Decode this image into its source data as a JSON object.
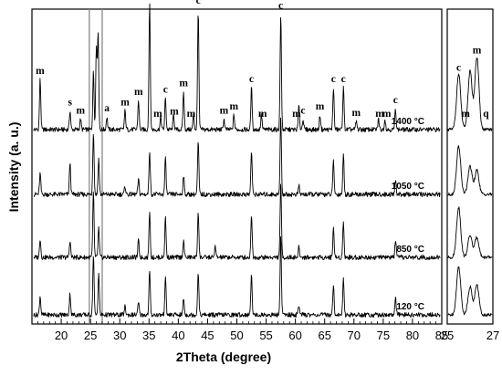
{
  "chart_data": {
    "type": "line",
    "xlabel": "2Theta (degree)",
    "ylabel": "Intensity (a. u.)",
    "xlim": [
      15,
      85
    ],
    "x_ticks": [
      20,
      25,
      30,
      35,
      40,
      45,
      50,
      55,
      60,
      65,
      70,
      75,
      80,
      85
    ],
    "inset_xlim": [
      25,
      27
    ],
    "inset_ticks": [
      25,
      27
    ],
    "reference_lines_x": [
      24.8,
      27.0
    ],
    "series": [
      {
        "name": "1400 °C",
        "peaks": [
          {
            "x": 16.4,
            "h": 0.48
          },
          {
            "x": 21.5,
            "h": 0.18
          },
          {
            "x": 23.3,
            "h": 0.1
          },
          {
            "x": 25.5,
            "h": 0.55
          },
          {
            "x": 26.0,
            "h": 0.78
          },
          {
            "x": 26.3,
            "h": 0.92
          },
          {
            "x": 27.8,
            "h": 0.12
          },
          {
            "x": 30.9,
            "h": 0.18
          },
          {
            "x": 33.2,
            "h": 0.28
          },
          {
            "x": 35.1,
            "h": 1.22
          },
          {
            "x": 37.0,
            "h": 0.12
          },
          {
            "x": 37.8,
            "h": 0.3
          },
          {
            "x": 39.2,
            "h": 0.14
          },
          {
            "x": 40.9,
            "h": 0.36
          },
          {
            "x": 42.6,
            "h": 0.14
          },
          {
            "x": 43.4,
            "h": 1.15
          },
          {
            "x": 47.8,
            "h": 0.1
          },
          {
            "x": 49.5,
            "h": 0.14
          },
          {
            "x": 52.5,
            "h": 0.4
          },
          {
            "x": 54.2,
            "h": 0.14
          },
          {
            "x": 57.5,
            "h": 1.1
          },
          {
            "x": 60.6,
            "h": 0.22
          },
          {
            "x": 61.3,
            "h": 0.1
          },
          {
            "x": 64.2,
            "h": 0.14
          },
          {
            "x": 66.5,
            "h": 0.4
          },
          {
            "x": 68.2,
            "h": 0.4
          },
          {
            "x": 70.4,
            "h": 0.08
          },
          {
            "x": 74.2,
            "h": 0.1
          },
          {
            "x": 75.3,
            "h": 0.1
          },
          {
            "x": 77.1,
            "h": 0.2
          }
        ]
      },
      {
        "name": "1050 °C",
        "peaks": [
          {
            "x": 16.4,
            "h": 0.2
          },
          {
            "x": 21.5,
            "h": 0.3
          },
          {
            "x": 25.5,
            "h": 0.6
          },
          {
            "x": 26.4,
            "h": 0.34
          },
          {
            "x": 30.9,
            "h": 0.08
          },
          {
            "x": 33.2,
            "h": 0.14
          },
          {
            "x": 35.1,
            "h": 0.42
          },
          {
            "x": 37.8,
            "h": 0.34
          },
          {
            "x": 40.9,
            "h": 0.18
          },
          {
            "x": 43.4,
            "h": 0.5
          },
          {
            "x": 52.5,
            "h": 0.42
          },
          {
            "x": 57.5,
            "h": 0.74
          },
          {
            "x": 60.6,
            "h": 0.08
          },
          {
            "x": 66.5,
            "h": 0.32
          },
          {
            "x": 68.2,
            "h": 0.38
          },
          {
            "x": 77.1,
            "h": 0.14
          }
        ]
      },
      {
        "name": "850 °C",
        "peaks": [
          {
            "x": 16.4,
            "h": 0.18
          },
          {
            "x": 21.5,
            "h": 0.16
          },
          {
            "x": 25.5,
            "h": 0.62
          },
          {
            "x": 26.4,
            "h": 0.28
          },
          {
            "x": 33.2,
            "h": 0.16
          },
          {
            "x": 35.1,
            "h": 0.44
          },
          {
            "x": 37.8,
            "h": 0.38
          },
          {
            "x": 40.9,
            "h": 0.16
          },
          {
            "x": 43.4,
            "h": 0.44
          },
          {
            "x": 46.3,
            "h": 0.1
          },
          {
            "x": 52.5,
            "h": 0.42
          },
          {
            "x": 57.5,
            "h": 0.72
          },
          {
            "x": 60.6,
            "h": 0.1
          },
          {
            "x": 66.5,
            "h": 0.28
          },
          {
            "x": 68.2,
            "h": 0.34
          },
          {
            "x": 77.1,
            "h": 0.16
          }
        ]
      },
      {
        "name": "120 °C",
        "peaks": [
          {
            "x": 16.4,
            "h": 0.18
          },
          {
            "x": 21.5,
            "h": 0.2
          },
          {
            "x": 25.5,
            "h": 0.58
          },
          {
            "x": 26.4,
            "h": 0.4
          },
          {
            "x": 30.9,
            "h": 0.08
          },
          {
            "x": 33.2,
            "h": 0.12
          },
          {
            "x": 35.1,
            "h": 0.42
          },
          {
            "x": 37.8,
            "h": 0.36
          },
          {
            "x": 40.9,
            "h": 0.16
          },
          {
            "x": 43.4,
            "h": 0.42
          },
          {
            "x": 52.5,
            "h": 0.4
          },
          {
            "x": 57.5,
            "h": 0.74
          },
          {
            "x": 60.6,
            "h": 0.1
          },
          {
            "x": 66.5,
            "h": 0.3
          },
          {
            "x": 68.2,
            "h": 0.34
          },
          {
            "x": 77.1,
            "h": 0.16
          }
        ]
      }
    ],
    "inset_peaks": [
      [
        {
          "x": 25.5,
          "h": 0.55
        },
        {
          "x": 26.0,
          "h": 0.58
        },
        {
          "x": 26.3,
          "h": 0.72
        }
      ],
      [
        {
          "x": 25.5,
          "h": 0.48
        },
        {
          "x": 26.0,
          "h": 0.28
        },
        {
          "x": 26.3,
          "h": 0.24
        }
      ],
      [
        {
          "x": 25.5,
          "h": 0.5
        },
        {
          "x": 26.0,
          "h": 0.22
        },
        {
          "x": 26.3,
          "h": 0.2
        }
      ],
      [
        {
          "x": 25.5,
          "h": 0.48
        },
        {
          "x": 26.0,
          "h": 0.28
        },
        {
          "x": 26.3,
          "h": 0.3
        }
      ]
    ],
    "annotations": [
      {
        "text": "m",
        "x": 16.4
      },
      {
        "text": "s",
        "x": 21.5
      },
      {
        "text": "m",
        "x": 23.3
      },
      {
        "text": "a",
        "x": 27.8
      },
      {
        "text": "m",
        "x": 30.9
      },
      {
        "text": "m",
        "x": 33.2
      },
      {
        "text": "c",
        "x": 35.1
      },
      {
        "text": "m",
        "x": 36.5
      },
      {
        "text": "c",
        "x": 37.8
      },
      {
        "text": "m",
        "x": 39.3
      },
      {
        "text": "m",
        "x": 40.9
      },
      {
        "text": "m",
        "x": 42.2
      },
      {
        "text": "c",
        "x": 43.4
      },
      {
        "text": "m",
        "x": 47.8
      },
      {
        "text": "m",
        "x": 49.5
      },
      {
        "text": "c",
        "x": 52.5
      },
      {
        "text": "m",
        "x": 54.4
      },
      {
        "text": "c",
        "x": 57.5
      },
      {
        "text": "m",
        "x": 60.2
      },
      {
        "text": "c",
        "x": 61.3
      },
      {
        "text": "m",
        "x": 64.2
      },
      {
        "text": "c",
        "x": 66.5
      },
      {
        "text": "c",
        "x": 68.2
      },
      {
        "text": "m",
        "x": 70.4
      },
      {
        "text": "m",
        "x": 74.4
      },
      {
        "text": "m",
        "x": 75.6
      },
      {
        "text": "c",
        "x": 77.1
      }
    ],
    "inset_annotations": [
      {
        "text": "c",
        "x": 25.5
      },
      {
        "text": "m",
        "x": 25.8
      },
      {
        "text": "m",
        "x": 26.3
      },
      {
        "text": "q",
        "x": 26.7
      }
    ]
  }
}
